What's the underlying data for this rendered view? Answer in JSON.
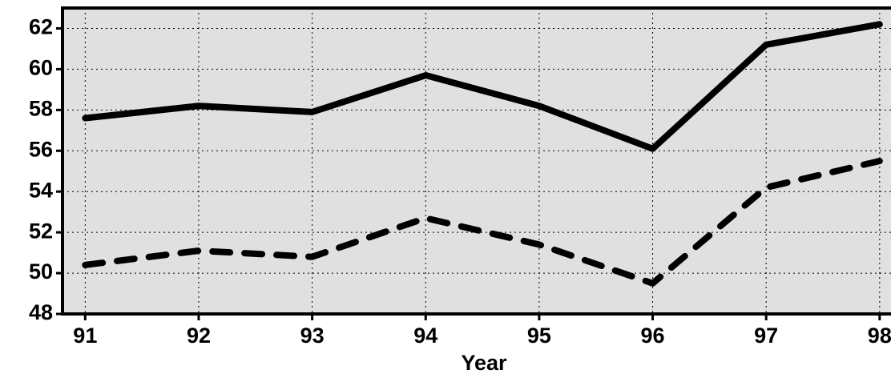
{
  "chart_data": {
    "type": "line",
    "x_label": "Year",
    "x": [
      91,
      92,
      93,
      94,
      95,
      96,
      97,
      98
    ],
    "series": [
      {
        "color": "#000000",
        "dash": "solid",
        "values": [
          57.6,
          58.2,
          57.9,
          59.7,
          58.2,
          56.1,
          61.2,
          62.2
        ]
      },
      {
        "color": "#000000",
        "dash": "dashed",
        "values": [
          50.4,
          51.1,
          50.8,
          52.7,
          51.4,
          49.5,
          54.2,
          55.5
        ]
      }
    ],
    "xlim": [
      90.8,
      98.1
    ],
    "xticks": [
      91,
      92,
      93,
      94,
      95,
      96,
      97,
      98
    ],
    "ylim": [
      48,
      63
    ],
    "yticks": [
      48,
      50,
      52,
      54,
      56,
      58,
      60,
      62
    ],
    "grid": true,
    "background": "#e0e0e0"
  }
}
